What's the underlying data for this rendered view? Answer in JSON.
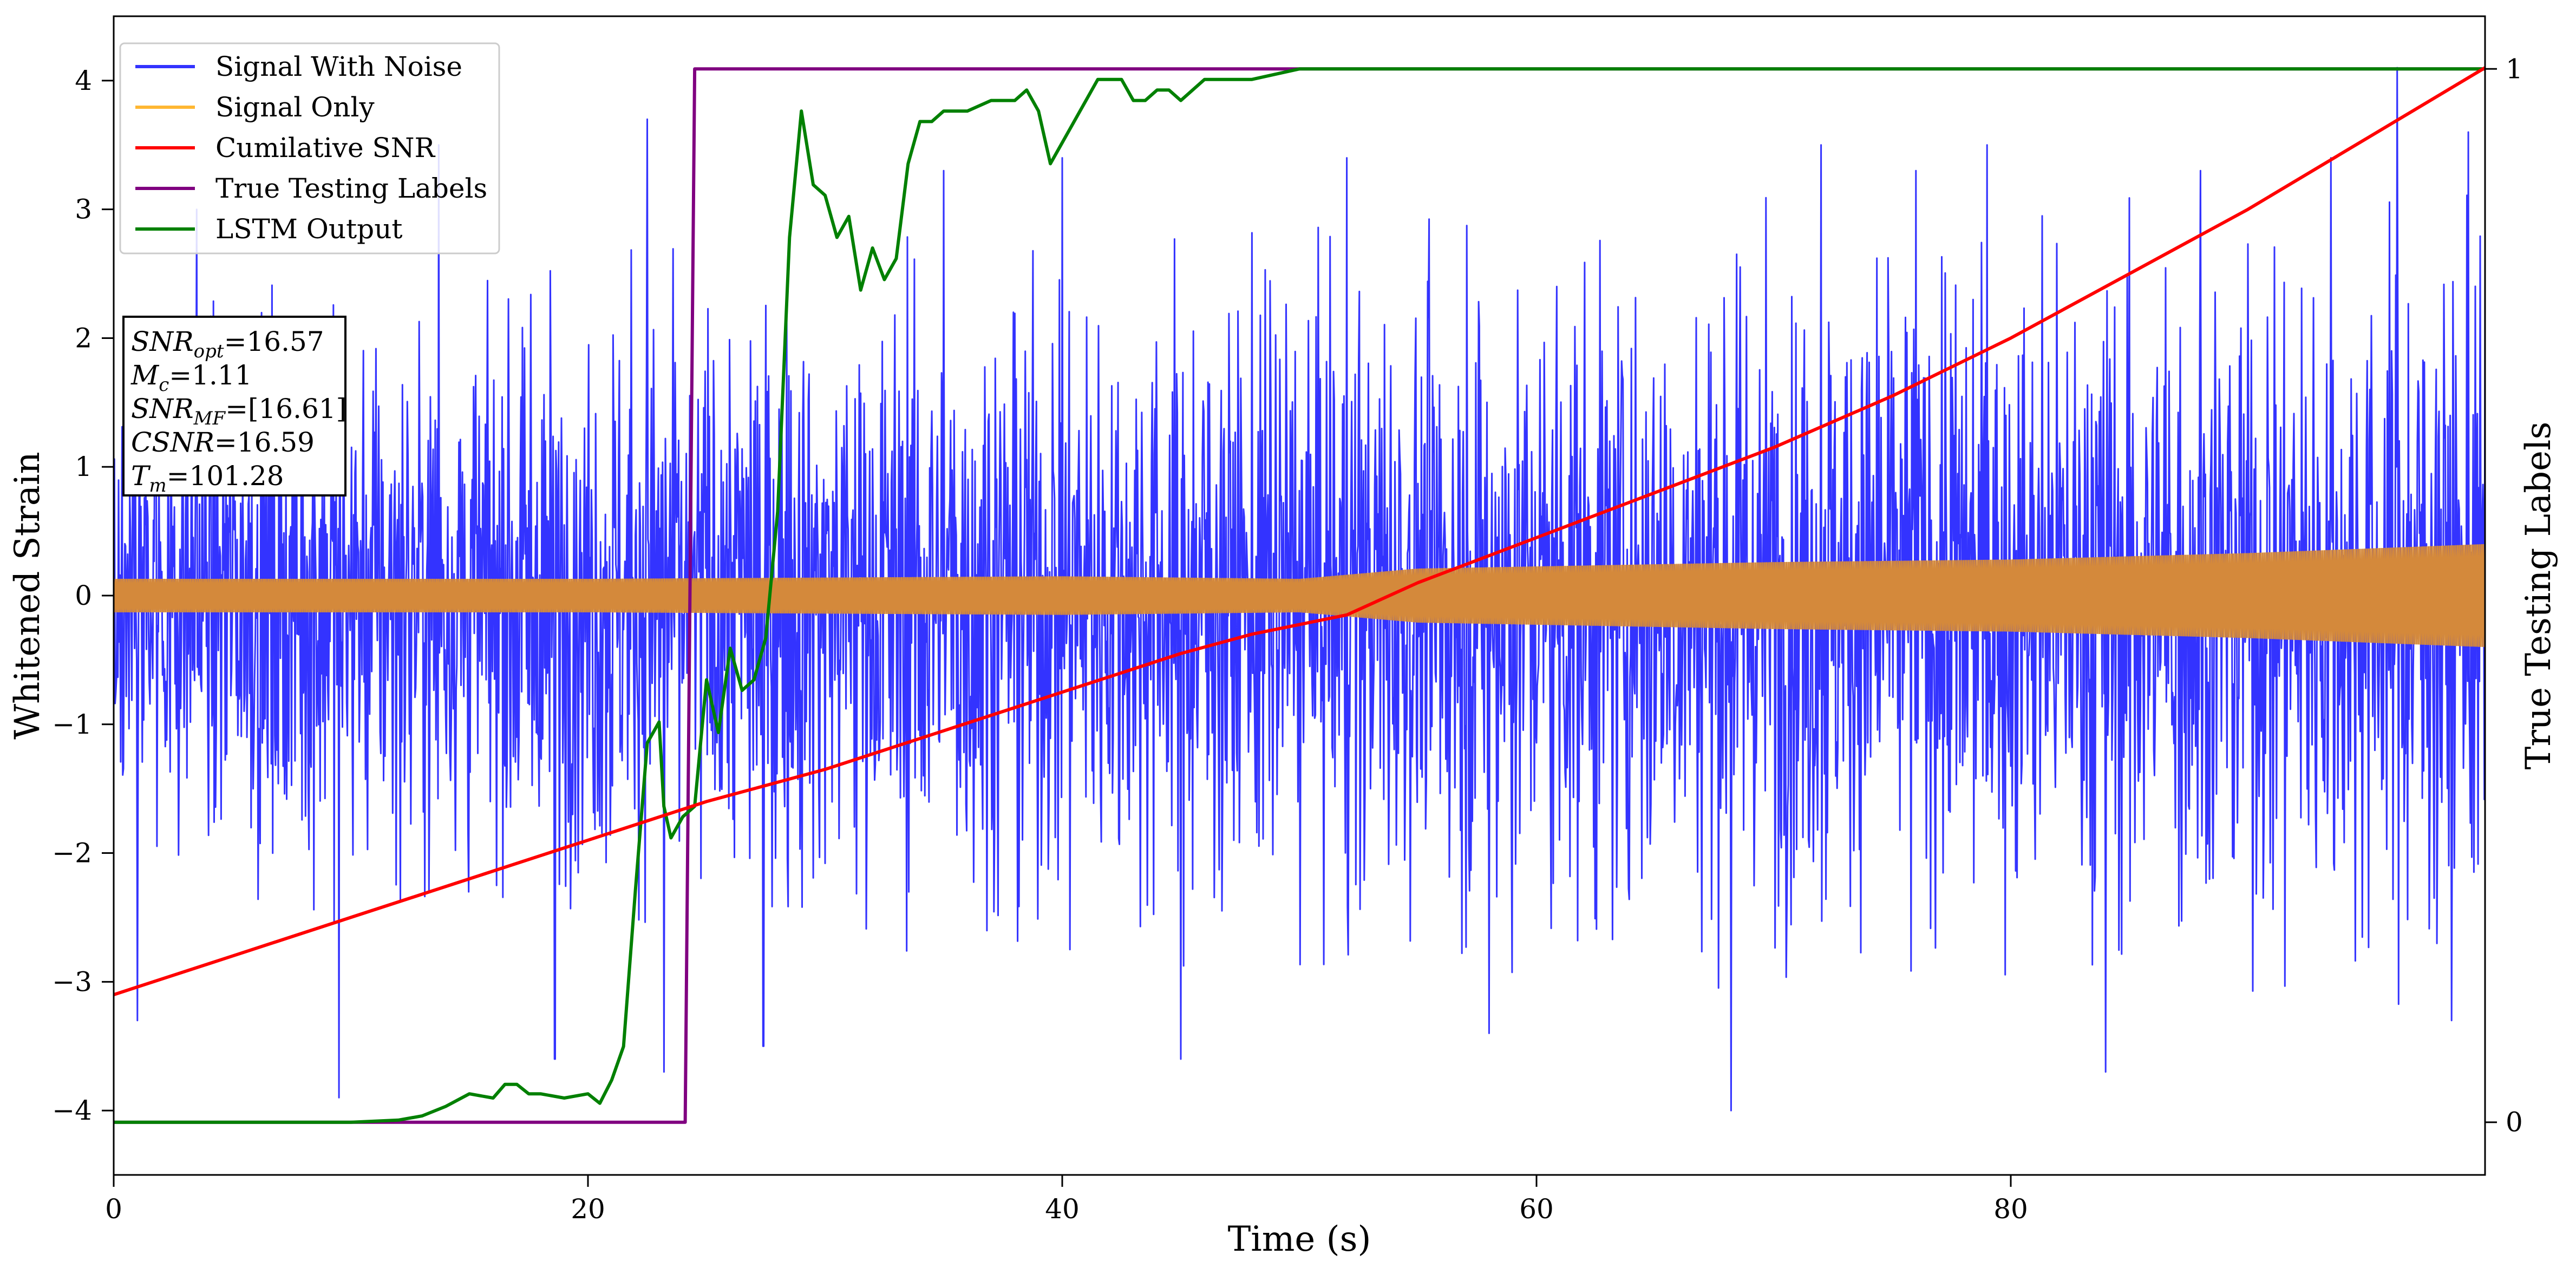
{
  "chart_data": {
    "type": "line",
    "xlabel": "Time (s)",
    "ylabel": "Whitened Strain",
    "ylabel_right": "True Testing Labels",
    "xlim": [
      0,
      100
    ],
    "ylim": [
      -4.5,
      4.5
    ],
    "ylim_right": [
      -0.05,
      1.05
    ],
    "x_ticks": [
      0,
      20,
      40,
      60,
      80
    ],
    "y_ticks": [
      -4,
      -3,
      -2,
      -1,
      0,
      1,
      2,
      3,
      4
    ],
    "y_ticks_right": [
      0,
      1
    ],
    "grid": false,
    "legend_position": "top-left",
    "series": [
      {
        "name": "Signal With Noise",
        "color": "#3333ff",
        "envelope_upper": [
          [
            0,
            2.3
          ],
          [
            10,
            2.6
          ],
          [
            20,
            2.7
          ],
          [
            30,
            2.8
          ],
          [
            40,
            2.9
          ],
          [
            50,
            2.9
          ],
          [
            60,
            3.0
          ],
          [
            70,
            3.1
          ],
          [
            80,
            3.1
          ],
          [
            90,
            3.2
          ],
          [
            100,
            3.2
          ]
        ],
        "envelope_lower": [
          [
            0,
            -2.3
          ],
          [
            10,
            -2.6
          ],
          [
            20,
            -2.7
          ],
          [
            30,
            -2.8
          ],
          [
            40,
            -2.9
          ],
          [
            50,
            -2.9
          ],
          [
            60,
            -3.0
          ],
          [
            70,
            -3.1
          ],
          [
            80,
            -3.1
          ],
          [
            90,
            -3.2
          ],
          [
            100,
            -3.2
          ]
        ],
        "spikes": [
          [
            1,
            -3.3
          ],
          [
            3.5,
            3.0
          ],
          [
            9.5,
            -3.9
          ],
          [
            13.7,
            3.5
          ],
          [
            18.6,
            -3.6
          ],
          [
            22.5,
            3.7
          ],
          [
            23.2,
            -3.7
          ],
          [
            27.4,
            -3.5
          ],
          [
            35,
            3.3
          ],
          [
            40,
            3.4
          ],
          [
            45,
            -3.6
          ],
          [
            52,
            3.4
          ],
          [
            58,
            -3.4
          ],
          [
            68.2,
            -4.0
          ],
          [
            72,
            3.5
          ],
          [
            76,
            3.3
          ],
          [
            79,
            3.5
          ],
          [
            84,
            -3.7
          ],
          [
            88,
            3.3
          ],
          [
            93.5,
            3.4
          ],
          [
            96.3,
            4.1
          ],
          [
            98.6,
            -3.3
          ],
          [
            99.3,
            3.6
          ]
        ]
      },
      {
        "name": "Signal Only",
        "color": "#d4893b",
        "amplitude": [
          [
            0,
            0.13
          ],
          [
            20,
            0.13
          ],
          [
            40,
            0.15
          ],
          [
            50,
            0.13
          ],
          [
            55,
            0.21
          ],
          [
            70,
            0.26
          ],
          [
            80,
            0.28
          ],
          [
            90,
            0.33
          ],
          [
            100,
            0.4
          ]
        ]
      },
      {
        "name": "Cumilative SNR",
        "color": "#ff0000",
        "x": [
          0,
          5,
          10,
          15,
          20,
          25,
          30,
          35,
          40,
          45,
          48,
          52,
          55,
          60,
          65,
          70,
          75,
          80,
          85,
          90,
          95,
          100
        ],
        "y": [
          -3.1,
          -2.8,
          -2.5,
          -2.2,
          -1.9,
          -1.6,
          -1.35,
          -1.05,
          -0.75,
          -0.45,
          -0.3,
          -0.15,
          0.1,
          0.45,
          0.8,
          1.15,
          1.55,
          2.0,
          2.5,
          3.0,
          3.55,
          4.1
        ]
      },
      {
        "name": "True Testing Labels",
        "color": "#800080",
        "axis": "right",
        "x": [
          0,
          24.1,
          24.5,
          100
        ],
        "y": [
          0,
          0,
          1,
          1
        ]
      },
      {
        "name": "LSTM Output",
        "color": "#008000",
        "axis": "right",
        "x": [
          0,
          10,
          12,
          13,
          14,
          15,
          16,
          16.5,
          17,
          17.5,
          18,
          19,
          20,
          20.5,
          21,
          21.5,
          22,
          22.5,
          23,
          23.2,
          23.5,
          24,
          24.5,
          25,
          25.5,
          26,
          26.5,
          27,
          27.5,
          28,
          28.5,
          29,
          29.5,
          30,
          30.5,
          31,
          31.5,
          32,
          32.5,
          33,
          33.5,
          34,
          34.5,
          35,
          36,
          37,
          38,
          38.5,
          39,
          39.5,
          40,
          41,
          41.5,
          42,
          42.5,
          43,
          43.5,
          44,
          44.5,
          45,
          46,
          47,
          48,
          50,
          52,
          55,
          58,
          60,
          100
        ],
        "y": [
          0,
          0,
          0.002,
          0.006,
          0.015,
          0.027,
          0.023,
          0.036,
          0.036,
          0.027,
          0.027,
          0.023,
          0.027,
          0.018,
          0.04,
          0.072,
          0.22,
          0.36,
          0.38,
          0.3,
          0.27,
          0.29,
          0.3,
          0.42,
          0.37,
          0.45,
          0.41,
          0.42,
          0.46,
          0.58,
          0.84,
          0.96,
          0.89,
          0.88,
          0.84,
          0.86,
          0.79,
          0.83,
          0.8,
          0.82,
          0.91,
          0.95,
          0.95,
          0.96,
          0.96,
          0.97,
          0.97,
          0.98,
          0.96,
          0.91,
          0.93,
          0.97,
          0.99,
          0.99,
          0.99,
          0.97,
          0.97,
          0.98,
          0.98,
          0.97,
          0.99,
          0.99,
          0.99,
          1.0,
          1.0,
          1.0,
          1.0,
          1.0,
          1.0
        ]
      }
    ],
    "annotation_lines": [
      {
        "sym": "SNR",
        "sub": "opt",
        "rest": "=16.57"
      },
      {
        "sym": "M",
        "sub": "c",
        "rest": "=1.11"
      },
      {
        "sym": "SNR",
        "sub": "MF",
        "rest": "=[16.61]"
      },
      {
        "sym": "CSNR",
        "sub": "",
        "rest": "=16.59"
      },
      {
        "sym": "T",
        "sub": "m",
        "rest": "=101.28"
      }
    ]
  }
}
